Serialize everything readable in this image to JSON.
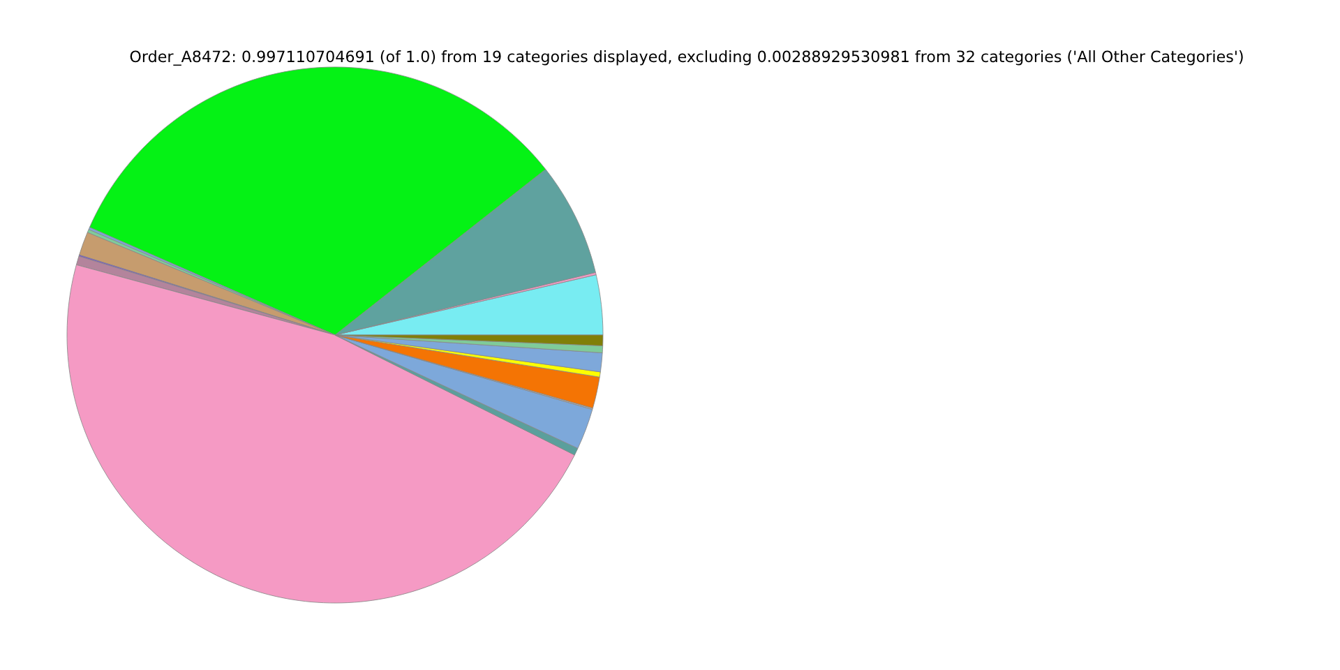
{
  "chart_data": {
    "type": "pie",
    "title": "Order_A8472: 0.997110704691 (of 1.0) from 19 categories displayed, excluding 0.00288929530981 from 32 categories ('All Other Categories')",
    "categories": [
      null,
      null,
      null,
      null,
      null,
      null,
      null,
      null,
      null,
      null,
      null,
      null,
      null,
      null,
      null,
      null,
      null,
      null
    ],
    "values": [
      3.61,
      0.14,
      6.86,
      32.81,
      0.14,
      0.19,
      1.42,
      0.08,
      0.53,
      46.83,
      0.44,
      2.47,
      0.08,
      1.89,
      0.31,
      1.14,
      0.42,
      0.64
    ],
    "colors": [
      "#78ecf2",
      "#f29bc6",
      "#5fa29f",
      "#05f215",
      "#7da6d9",
      "#7fcc9b",
      "#c69c6e",
      "#7a4fd0",
      "#b3849c",
      "#f59ac4",
      "#5b9f9c",
      "#7da8da",
      "#b0b0b0",
      "#f47404",
      "#fcff00",
      "#7ea8da",
      "#7fcb99",
      "#807f08"
    ],
    "legend": false
  }
}
